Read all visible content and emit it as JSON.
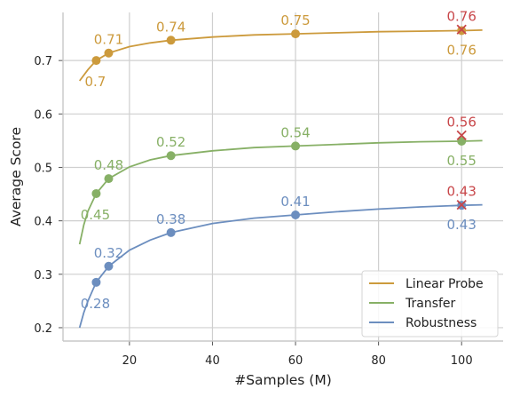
{
  "chart_data": {
    "type": "line",
    "xlabel": "#Samples (M)",
    "ylabel": "Average Score",
    "xlim": [
      4,
      110
    ],
    "ylim": [
      0.175,
      0.79
    ],
    "x_ticks": [
      20,
      40,
      60,
      80,
      100
    ],
    "y_ticks": [
      0.2,
      0.3,
      0.4,
      0.5,
      0.6,
      0.7
    ],
    "x_tick_labels": [
      "20",
      "40",
      "60",
      "80",
      "100"
    ],
    "y_tick_labels": [
      "0.2",
      "0.3",
      "0.4",
      "0.5",
      "0.6",
      "0.7"
    ],
    "grid": true,
    "legend_position": "lower-right",
    "series": [
      {
        "name": "Linear Probe",
        "color": "#cc9a3c",
        "points": [
          {
            "x": 12,
            "y": 0.7,
            "label": "0.7",
            "label_pos": "below-left"
          },
          {
            "x": 15,
            "y": 0.714,
            "label": "0.71",
            "label_pos": "above"
          },
          {
            "x": 30,
            "y": 0.738,
            "label": "0.74",
            "label_pos": "above"
          },
          {
            "x": 60,
            "y": 0.75,
            "label": "0.75",
            "label_pos": "above"
          },
          {
            "x": 100,
            "y": 0.756,
            "label": "0.76",
            "label_pos": "below"
          }
        ],
        "fit_curve": [
          [
            8,
            0.662
          ],
          [
            10,
            0.683
          ],
          [
            12,
            0.7
          ],
          [
            15,
            0.714
          ],
          [
            20,
            0.726
          ],
          [
            25,
            0.733
          ],
          [
            30,
            0.738
          ],
          [
            40,
            0.744
          ],
          [
            50,
            0.748
          ],
          [
            60,
            0.75
          ],
          [
            70,
            0.752
          ],
          [
            80,
            0.754
          ],
          [
            90,
            0.755
          ],
          [
            100,
            0.756
          ],
          [
            105,
            0.757
          ]
        ],
        "extra_point": {
          "x": 100,
          "y": 0.758,
          "label": "0.76",
          "color": "#c8474a"
        }
      },
      {
        "name": "Transfer",
        "color": "#87b066",
        "points": [
          {
            "x": 12,
            "y": 0.451,
            "label": "0.45",
            "label_pos": "below-left"
          },
          {
            "x": 15,
            "y": 0.479,
            "label": "0.48",
            "label_pos": "above"
          },
          {
            "x": 30,
            "y": 0.522,
            "label": "0.52",
            "label_pos": "above"
          },
          {
            "x": 60,
            "y": 0.54,
            "label": "0.54",
            "label_pos": "above"
          },
          {
            "x": 100,
            "y": 0.549,
            "label": "0.55",
            "label_pos": "below"
          }
        ],
        "fit_curve": [
          [
            8,
            0.356
          ],
          [
            9,
            0.392
          ],
          [
            10,
            0.418
          ],
          [
            12,
            0.451
          ],
          [
            15,
            0.479
          ],
          [
            20,
            0.501
          ],
          [
            25,
            0.514
          ],
          [
            30,
            0.522
          ],
          [
            40,
            0.531
          ],
          [
            50,
            0.537
          ],
          [
            60,
            0.54
          ],
          [
            70,
            0.543
          ],
          [
            80,
            0.546
          ],
          [
            90,
            0.548
          ],
          [
            100,
            0.549
          ],
          [
            105,
            0.55
          ]
        ],
        "extra_point": {
          "x": 100,
          "y": 0.56,
          "label": "0.56",
          "color": "#c8474a"
        }
      },
      {
        "name": "Robustness",
        "color": "#6c8ebf",
        "points": [
          {
            "x": 12,
            "y": 0.285,
            "label": "0.28",
            "label_pos": "below-left"
          },
          {
            "x": 15,
            "y": 0.315,
            "label": "0.32",
            "label_pos": "above"
          },
          {
            "x": 30,
            "y": 0.378,
            "label": "0.38",
            "label_pos": "above"
          },
          {
            "x": 60,
            "y": 0.411,
            "label": "0.41",
            "label_pos": "above"
          },
          {
            "x": 100,
            "y": 0.429,
            "label": "0.43",
            "label_pos": "below"
          }
        ],
        "fit_curve": [
          [
            8,
            0.2
          ],
          [
            9,
            0.228
          ],
          [
            10,
            0.25
          ],
          [
            12,
            0.285
          ],
          [
            15,
            0.315
          ],
          [
            20,
            0.345
          ],
          [
            25,
            0.364
          ],
          [
            30,
            0.378
          ],
          [
            40,
            0.395
          ],
          [
            50,
            0.405
          ],
          [
            60,
            0.411
          ],
          [
            70,
            0.417
          ],
          [
            80,
            0.422
          ],
          [
            90,
            0.426
          ],
          [
            100,
            0.429
          ],
          [
            105,
            0.43
          ]
        ],
        "extra_point": {
          "x": 100,
          "y": 0.43,
          "label": "0.43",
          "color": "#c8474a"
        }
      }
    ]
  }
}
